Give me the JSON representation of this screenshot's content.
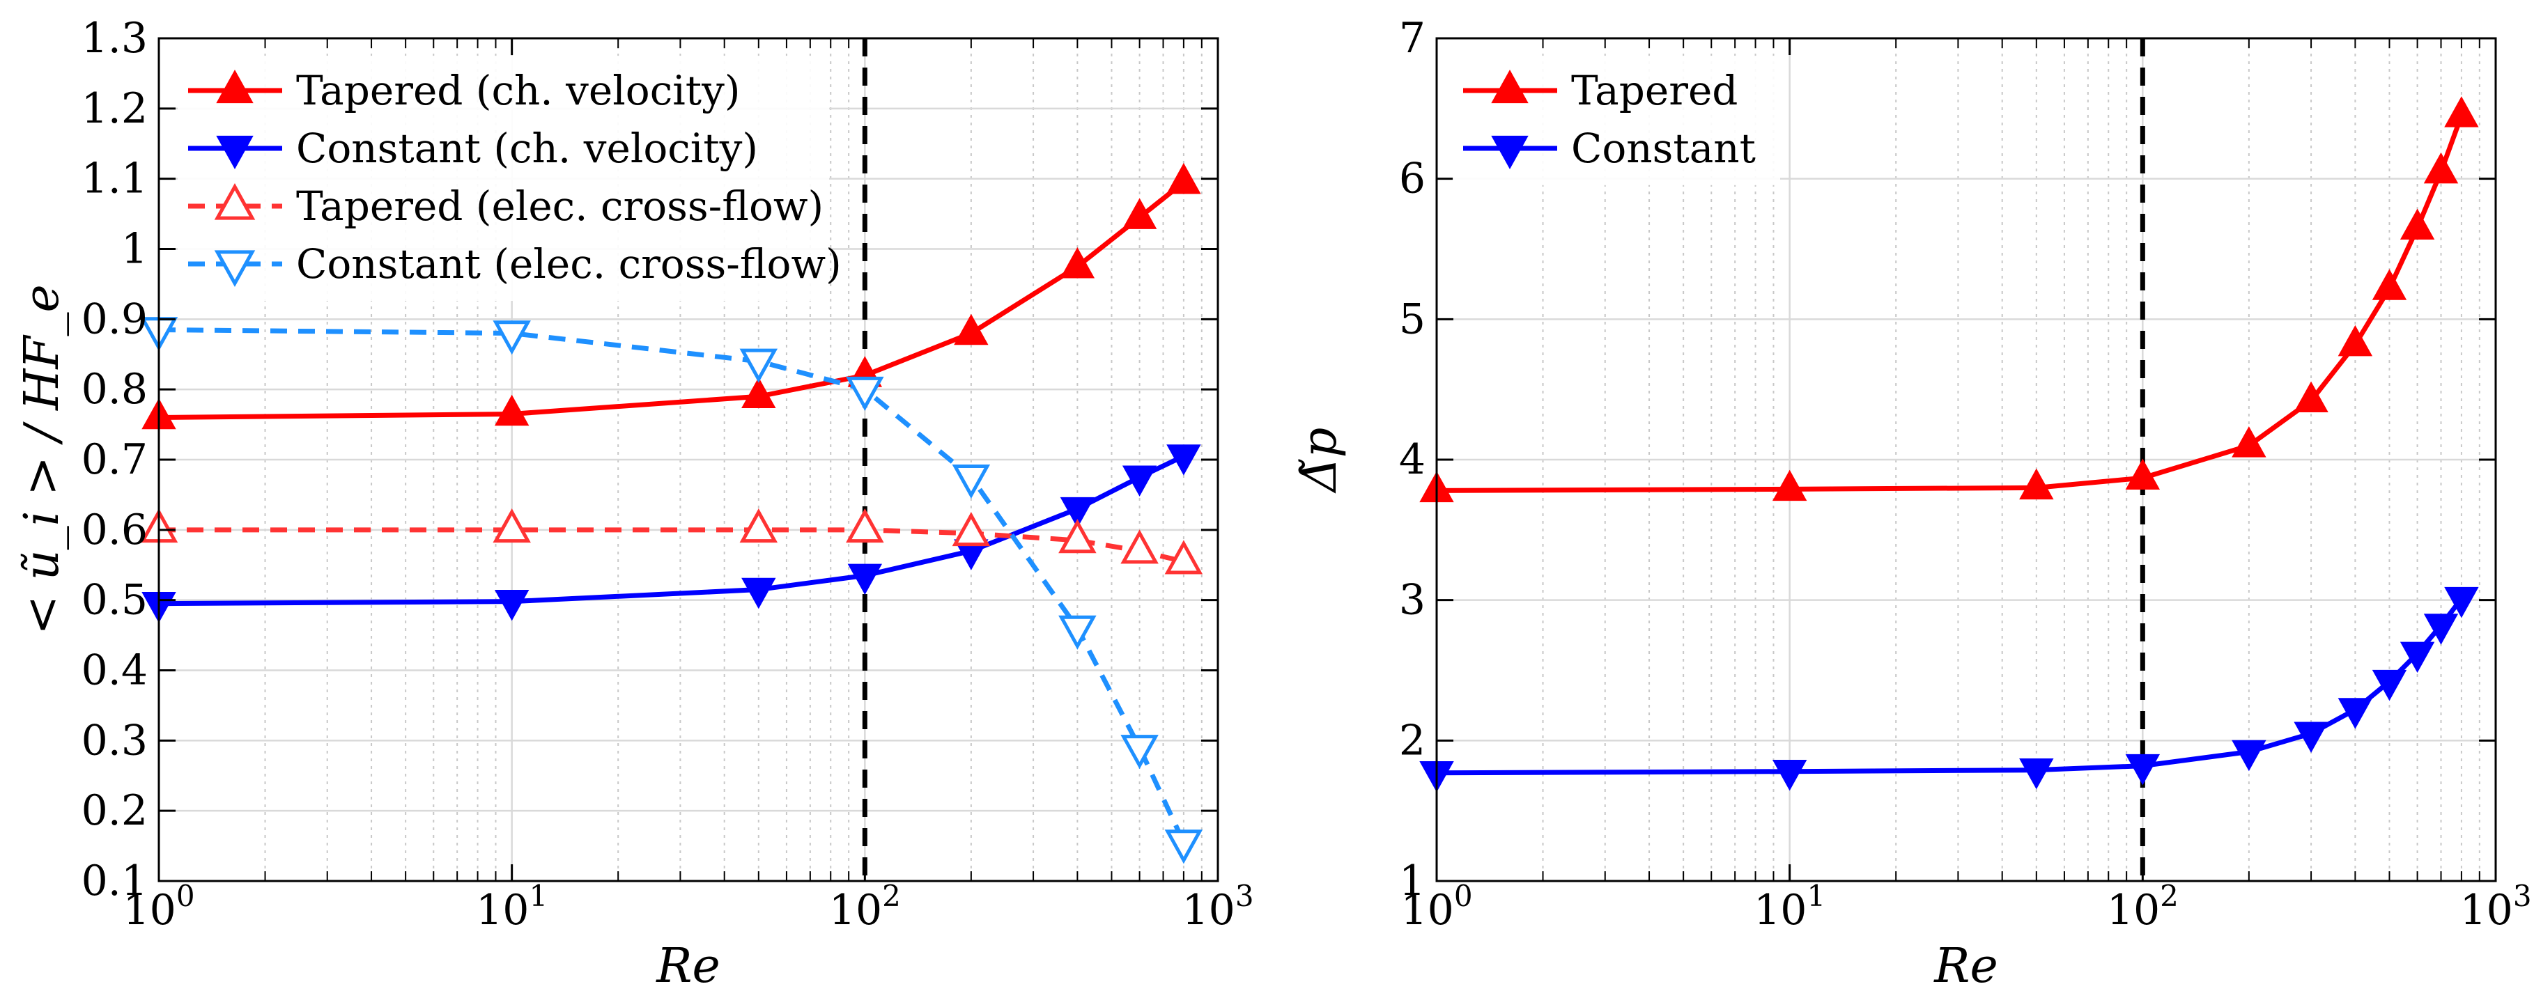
{
  "chart_data": [
    {
      "type": "line",
      "title": "",
      "xlabel": "Re",
      "ylabel": "< ũ_i > / HF_e",
      "xscale": "log",
      "xlim": [
        1,
        1000
      ],
      "ylim": [
        0.1,
        1.3
      ],
      "grid": true,
      "legend_position": "top-left",
      "x_tick_labels": [
        {
          "value": 1,
          "base": "10",
          "exp": "0"
        },
        {
          "value": 10,
          "base": "10",
          "exp": "1"
        },
        {
          "value": 100,
          "base": "10",
          "exp": "2"
        },
        {
          "value": 1000,
          "base": "10",
          "exp": "3"
        }
      ],
      "y_ticks": [
        0.1,
        0.2,
        0.3,
        0.4,
        0.5,
        0.6,
        0.7,
        0.8,
        0.9,
        1,
        1.1,
        1.2,
        1.3
      ],
      "y_tick_labels": [
        "0.1",
        "0.2",
        "0.3",
        "0.4",
        "0.5",
        "0.6",
        "0.7",
        "0.8",
        "0.9",
        "1",
        "1.1",
        "1.2",
        "1.3"
      ],
      "vline": {
        "x": 100,
        "style": "dashed",
        "color": "#000000"
      },
      "series": [
        {
          "name": "Tapered (ch. velocity)",
          "color": "#ff0000",
          "marker": "triangle-up",
          "filled": true,
          "dashed": false,
          "x": [
            1,
            10,
            50,
            100,
            200,
            400,
            600,
            800
          ],
          "values": [
            0.76,
            0.765,
            0.79,
            0.82,
            0.88,
            0.975,
            1.045,
            1.095
          ]
        },
        {
          "name": "Constant (ch. velocity)",
          "color": "#0000ff",
          "marker": "triangle-down",
          "filled": true,
          "dashed": false,
          "x": [
            1,
            10,
            50,
            100,
            200,
            400,
            600,
            800
          ],
          "values": [
            0.495,
            0.498,
            0.515,
            0.535,
            0.57,
            0.63,
            0.675,
            0.705
          ]
        },
        {
          "name": "Tapered (elec. cross-flow)",
          "color": "#ff3333",
          "marker": "triangle-up",
          "filled": false,
          "dashed": true,
          "x": [
            1,
            10,
            50,
            100,
            200,
            400,
            600,
            800
          ],
          "values": [
            0.6,
            0.6,
            0.6,
            0.6,
            0.595,
            0.585,
            0.57,
            0.555
          ]
        },
        {
          "name": "Constant (elec. cross-flow)",
          "color": "#1e90ff",
          "marker": "triangle-down",
          "filled": false,
          "dashed": true,
          "x": [
            1,
            10,
            50,
            100,
            200,
            400,
            600,
            800
          ],
          "values": [
            0.885,
            0.88,
            0.84,
            0.8,
            0.675,
            0.46,
            0.29,
            0.155
          ]
        }
      ]
    },
    {
      "type": "line",
      "title": "",
      "xlabel": "Re",
      "ylabel": "Δ̃p",
      "xscale": "log",
      "xlim": [
        1,
        1000
      ],
      "ylim": [
        1,
        7
      ],
      "grid": true,
      "legend_position": "top-left",
      "x_tick_labels": [
        {
          "value": 1,
          "base": "10",
          "exp": "0"
        },
        {
          "value": 10,
          "base": "10",
          "exp": "1"
        },
        {
          "value": 100,
          "base": "10",
          "exp": "2"
        },
        {
          "value": 1000,
          "base": "10",
          "exp": "3"
        }
      ],
      "y_ticks": [
        1,
        2,
        3,
        4,
        5,
        6,
        7
      ],
      "y_tick_labels": [
        "1",
        "2",
        "3",
        "4",
        "5",
        "6",
        "7"
      ],
      "vline": {
        "x": 100,
        "style": "dashed",
        "color": "#000000"
      },
      "series": [
        {
          "name": "Tapered",
          "color": "#ff0000",
          "marker": "triangle-up",
          "filled": true,
          "dashed": false,
          "x": [
            1,
            10,
            50,
            100,
            200,
            300,
            400,
            500,
            600,
            700,
            800
          ],
          "values": [
            3.78,
            3.79,
            3.8,
            3.87,
            4.1,
            4.42,
            4.82,
            5.22,
            5.65,
            6.05,
            6.45
          ]
        },
        {
          "name": "Constant",
          "color": "#0000ff",
          "marker": "triangle-down",
          "filled": true,
          "dashed": false,
          "x": [
            1,
            10,
            50,
            100,
            200,
            300,
            400,
            500,
            600,
            700,
            800
          ],
          "values": [
            1.77,
            1.78,
            1.79,
            1.82,
            1.92,
            2.05,
            2.22,
            2.42,
            2.62,
            2.82,
            3.01
          ]
        }
      ]
    }
  ]
}
